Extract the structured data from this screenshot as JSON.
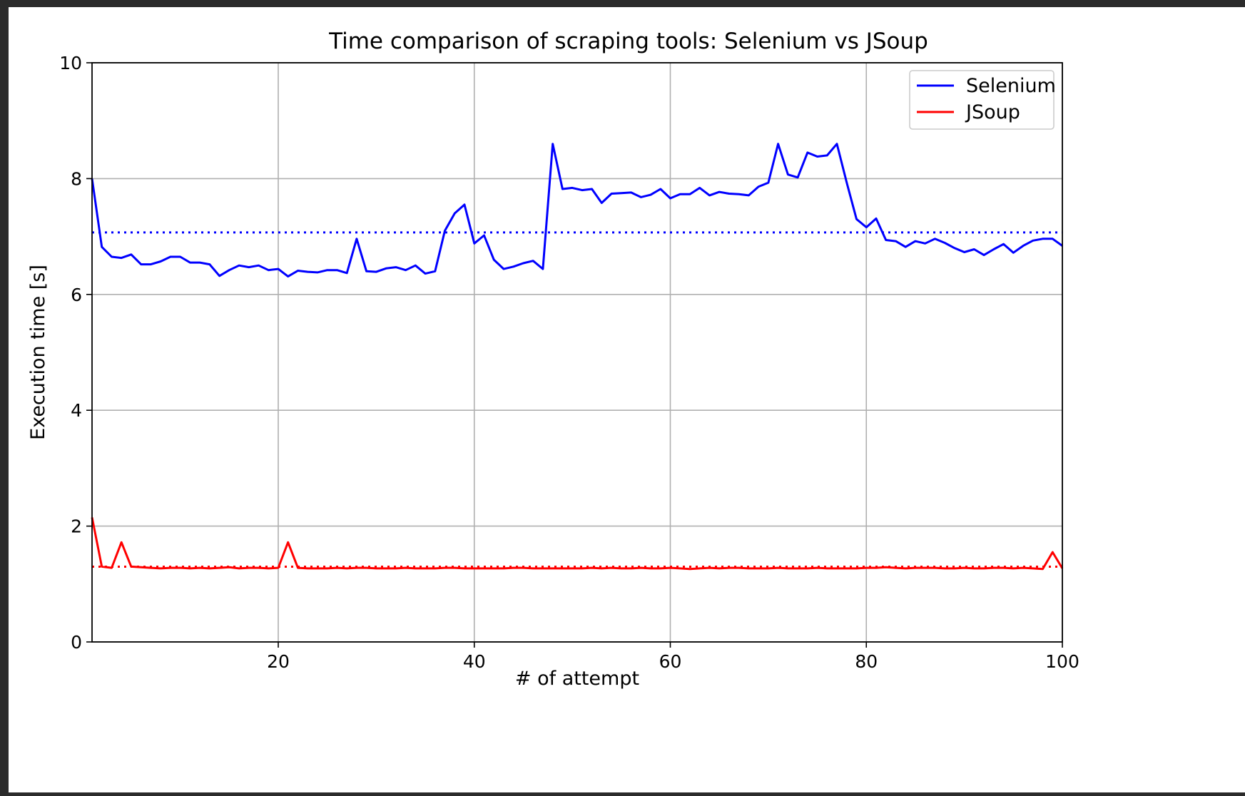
{
  "chart_data": {
    "type": "line",
    "title": "Time comparison of scraping tools: Selenium vs JSoup",
    "xlabel": "# of attempt",
    "ylabel": "Execution time [s]",
    "xlim": [
      1,
      100
    ],
    "ylim": [
      0,
      10
    ],
    "xticks": [
      20,
      40,
      60,
      80,
      100
    ],
    "yticks": [
      0,
      2,
      4,
      6,
      8,
      10
    ],
    "grid": true,
    "legend_position": "top-right",
    "series": [
      {
        "name": "Selenium",
        "color": "#0000ff",
        "style": "solid",
        "x": [
          1,
          2,
          3,
          4,
          5,
          6,
          7,
          8,
          9,
          10,
          11,
          12,
          13,
          14,
          15,
          16,
          17,
          18,
          19,
          20,
          21,
          22,
          23,
          24,
          25,
          26,
          27,
          28,
          29,
          30,
          31,
          32,
          33,
          34,
          35,
          36,
          37,
          38,
          39,
          40,
          41,
          42,
          43,
          44,
          45,
          46,
          47,
          48,
          49,
          50,
          51,
          52,
          53,
          54,
          55,
          56,
          57,
          58,
          59,
          60,
          61,
          62,
          63,
          64,
          65,
          66,
          67,
          68,
          69,
          70,
          71,
          72,
          73,
          74,
          75,
          76,
          77,
          78,
          79,
          80,
          81,
          82,
          83,
          84,
          85,
          86,
          87,
          88,
          89,
          90,
          91,
          92,
          93,
          94,
          95,
          96,
          97,
          98,
          99,
          100
        ],
        "values": [
          8.0,
          6.82,
          6.65,
          6.63,
          6.69,
          6.52,
          6.52,
          6.57,
          6.65,
          6.65,
          6.55,
          6.55,
          6.52,
          6.32,
          6.42,
          6.5,
          6.47,
          6.5,
          6.42,
          6.44,
          6.31,
          6.41,
          6.39,
          6.38,
          6.42,
          6.42,
          6.37,
          6.96,
          6.4,
          6.39,
          6.45,
          6.47,
          6.42,
          6.5,
          6.36,
          6.4,
          7.1,
          7.4,
          7.55,
          6.88,
          7.02,
          6.6,
          6.44,
          6.48,
          6.54,
          6.58,
          6.44,
          8.6,
          7.82,
          7.84,
          7.8,
          7.82,
          7.58,
          7.74,
          7.75,
          7.76,
          7.68,
          7.72,
          7.82,
          7.66,
          7.73,
          7.73,
          7.84,
          7.71,
          7.77,
          7.74,
          7.73,
          7.71,
          7.86,
          7.93,
          8.6,
          8.07,
          8.02,
          8.45,
          8.38,
          8.4,
          8.6,
          7.93,
          7.3,
          7.16,
          7.31,
          6.94,
          6.92,
          6.82,
          6.92,
          6.88,
          6.96,
          6.89,
          6.8,
          6.73,
          6.78,
          6.68,
          6.78,
          6.87,
          6.72,
          6.84,
          6.93,
          6.96,
          6.96,
          6.84
        ]
      },
      {
        "name": "JSoup",
        "color": "#ff0000",
        "style": "solid",
        "x": [
          1,
          2,
          3,
          4,
          5,
          6,
          7,
          8,
          9,
          10,
          11,
          12,
          13,
          14,
          15,
          16,
          17,
          18,
          19,
          20,
          21,
          22,
          23,
          24,
          25,
          26,
          27,
          28,
          29,
          30,
          31,
          32,
          33,
          34,
          35,
          36,
          37,
          38,
          39,
          40,
          41,
          42,
          43,
          44,
          45,
          46,
          47,
          48,
          49,
          50,
          51,
          52,
          53,
          54,
          55,
          56,
          57,
          58,
          59,
          60,
          61,
          62,
          63,
          64,
          65,
          66,
          67,
          68,
          69,
          70,
          71,
          72,
          73,
          74,
          75,
          76,
          77,
          78,
          79,
          80,
          81,
          82,
          83,
          84,
          85,
          86,
          87,
          88,
          89,
          90,
          91,
          92,
          93,
          94,
          95,
          96,
          97,
          98,
          99,
          100
        ],
        "values": [
          2.15,
          1.3,
          1.28,
          1.72,
          1.3,
          1.29,
          1.28,
          1.27,
          1.28,
          1.28,
          1.27,
          1.28,
          1.27,
          1.28,
          1.29,
          1.27,
          1.28,
          1.28,
          1.27,
          1.28,
          1.72,
          1.28,
          1.27,
          1.27,
          1.27,
          1.28,
          1.27,
          1.28,
          1.28,
          1.27,
          1.27,
          1.27,
          1.28,
          1.27,
          1.27,
          1.27,
          1.28,
          1.28,
          1.27,
          1.27,
          1.27,
          1.27,
          1.27,
          1.28,
          1.28,
          1.27,
          1.27,
          1.27,
          1.27,
          1.27,
          1.27,
          1.28,
          1.27,
          1.28,
          1.27,
          1.27,
          1.28,
          1.27,
          1.27,
          1.28,
          1.27,
          1.26,
          1.27,
          1.28,
          1.27,
          1.28,
          1.28,
          1.27,
          1.27,
          1.27,
          1.28,
          1.27,
          1.27,
          1.27,
          1.28,
          1.27,
          1.27,
          1.27,
          1.27,
          1.28,
          1.28,
          1.29,
          1.28,
          1.27,
          1.28,
          1.28,
          1.28,
          1.27,
          1.27,
          1.28,
          1.27,
          1.27,
          1.28,
          1.28,
          1.27,
          1.28,
          1.27,
          1.26,
          1.55,
          1.27
        ]
      }
    ],
    "reference_lines": [
      {
        "series": "Selenium",
        "value": 7.07,
        "color": "#0000ff",
        "style": "dotted"
      },
      {
        "series": "JSoup",
        "value": 1.3,
        "color": "#ff0000",
        "style": "dotted"
      }
    ]
  }
}
